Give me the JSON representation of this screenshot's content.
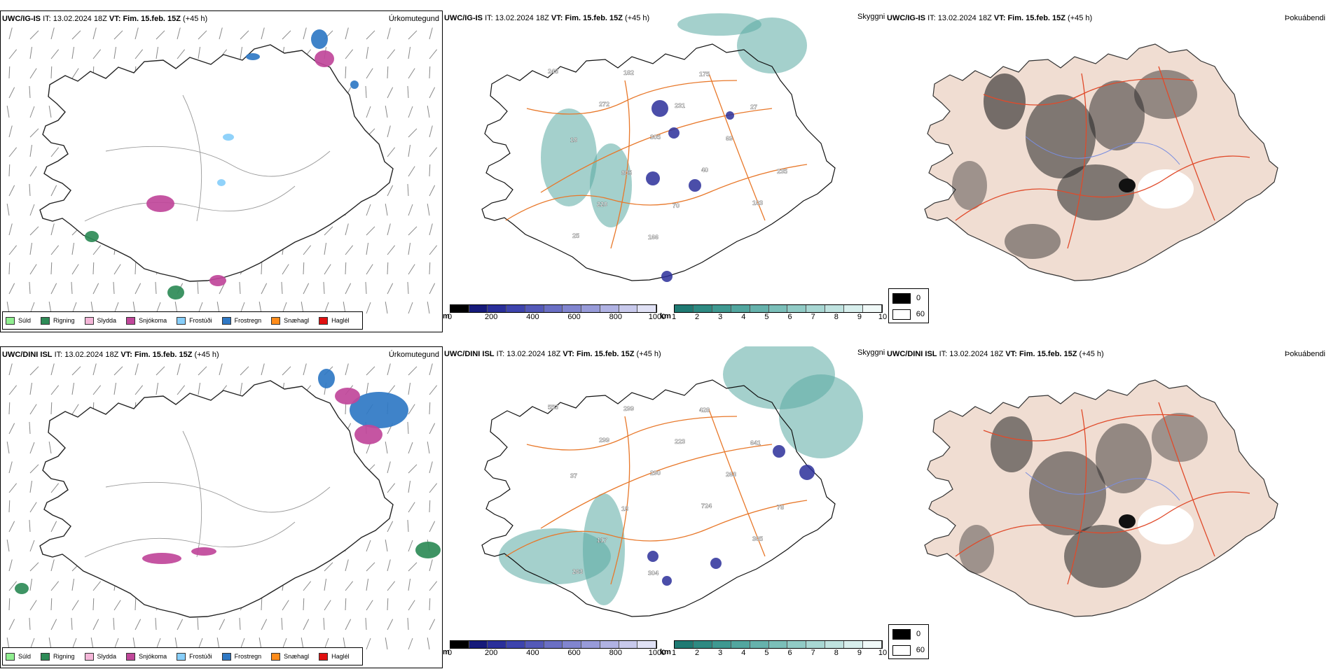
{
  "rows": [
    {
      "model": "UWC/IG-IS",
      "it_label": "IT:",
      "it_value": "13.02.2024 18Z",
      "vt_label": "VT:",
      "vt_value": "Fim. 15.feb. 15Z",
      "lead": "(+45 h)"
    },
    {
      "model": "UWC/DINI ISL",
      "it_label": "IT:",
      "it_value": "13.02.2024 18Z",
      "vt_label": "VT:",
      "vt_value": "Fim. 15.feb. 15Z",
      "lead": "(+45 h)"
    }
  ],
  "panel_titles": {
    "precip_type": "Úrkomutegund",
    "clouds": "Skyggni",
    "fog": "Þokuábendi"
  },
  "precip_legend": [
    {
      "label": "Súld",
      "color": "#90ee90"
    },
    {
      "label": "Rigning",
      "color": "#2e8b57"
    },
    {
      "label": "Slydda",
      "color": "#f4b6d8"
    },
    {
      "label": "Snjókoma",
      "color": "#c0479a"
    },
    {
      "label": "Frostúði",
      "color": "#87cefa"
    },
    {
      "label": "Frostregn",
      "color": "#2f78c4"
    },
    {
      "label": "Snæhagl",
      "color": "#ff8c1a"
    },
    {
      "label": "Haglél",
      "color": "#e01010"
    }
  ],
  "ceiling_scale": {
    "unit": "m",
    "ticks": [
      "0",
      "200",
      "400",
      "600",
      "800",
      "1000"
    ],
    "colors": [
      "#000000",
      "#161a7a",
      "#2a2f9a",
      "#3e44ad",
      "#5459b8",
      "#6a6fc4",
      "#8185cf",
      "#989bd9",
      "#b0b2e3",
      "#c8c9ec",
      "#e0e1f5"
    ]
  },
  "visibility_scale": {
    "unit": "km",
    "ticks": [
      "1",
      "2",
      "3",
      "4",
      "5",
      "6",
      "7",
      "8",
      "9",
      "10"
    ],
    "colors": [
      "#1f7a73",
      "#2e8a82",
      "#3f9991",
      "#52a69f",
      "#66b2ac",
      "#7bbfb9",
      "#91cbc6",
      "#a8d7d3",
      "#c0e3e0",
      "#d8efed",
      "#f0f9f8"
    ]
  },
  "cloud_cover_legend": [
    {
      "label": "0",
      "color": "#000000"
    },
    {
      "label": "60",
      "color": "#ffffff"
    }
  ],
  "station_values": {
    "top": [
      "248",
      "272",
      "305",
      "40",
      "103",
      "25",
      "182",
      "231",
      "69",
      "235",
      "220",
      "166",
      "175",
      "27",
      "18",
      "805",
      "70"
    ],
    "bottom": [
      "553",
      "299",
      "290",
      "724",
      "305",
      "263",
      "299",
      "223",
      "263",
      "78",
      "117",
      "304",
      "428",
      "641",
      "37",
      "18"
    ]
  }
}
